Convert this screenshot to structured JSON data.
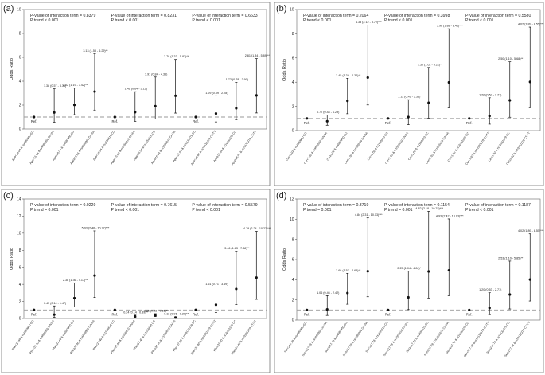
{
  "chart_data": [
    {
      "type": "forest",
      "panel": "(a)",
      "ylabel": "Odds Ratio",
      "ylim": [
        0,
        10
      ],
      "yticks": [
        0,
        2,
        4,
        6,
        8,
        10
      ],
      "reference_line": 1,
      "groups": [
        {
          "interaction": "P-value of interaction term = 0.8379",
          "trend": "P trend < 0.001",
          "points": [
            {
              "category": "Apo<16.04 & rs4680960 GG",
              "or": 1.0,
              "lo": null,
              "hi": null,
              "label": "Ref."
            },
            {
              "category": "Apo<16.04 & rs4680960 GA/AA",
              "or": 1.38,
              "lo": 0.57,
              "hi": 3.36,
              "label": "1.38 (0.57 - 3.36)"
            },
            {
              "category": "Apo≥16.04 & rs4680960 GG",
              "or": 2.02,
              "lo": 1.19,
              "hi": 3.42,
              "label": "2.02 (1.19 - 3.42)**"
            },
            {
              "category": "Apo≥16.04 & rs4680960 GA/AA",
              "or": 3.13,
              "lo": 1.58,
              "hi": 6.29,
              "label": "3.13 (1.58 - 6.29)**"
            }
          ]
        },
        {
          "interaction": "P-value of interaction term = 0.8231",
          "trend": "P trend < 0.001",
          "points": [
            {
              "category": "Apo<16.04 & rs1556610 CC",
              "or": 1.0,
              "lo": null,
              "hi": null,
              "label": "Ref."
            },
            {
              "category": "Apo<16.04 & rs1556610 CA/AA",
              "or": 1.41,
              "lo": 0.64,
              "hi": 3.12,
              "label": "1.41 (0.64 - 3.12)"
            },
            {
              "category": "Apo≥16.04 & rs1556610 CC",
              "or": 1.91,
              "lo": 0.84,
              "hi": 4.35,
              "label": "1.91 (0.84 - 4.35)"
            },
            {
              "category": "Apo≥16.04 & rs1556610 CA/AA",
              "or": 2.78,
              "lo": 1.33,
              "hi": 5.82,
              "label": "2.78 (1.33 - 5.82)**"
            }
          ]
        },
        {
          "interaction": "P-value of interaction term = 0.6633",
          "trend": "P trend < 0.001",
          "points": [
            {
              "category": "Apo<16.04 & rs10132379 CC",
              "or": 1.0,
              "lo": null,
              "hi": null,
              "label": "Ref."
            },
            {
              "category": "Apo<16.04 & rs10132379 CT/TT",
              "or": 1.29,
              "lo": 0.59,
              "hi": 2.78,
              "label": "1.29 (0.59 - 2.78)"
            },
            {
              "category": "Apo≥16.04 & rs10132379 CC",
              "or": 1.73,
              "lo": 0.78,
              "hi": 3.9,
              "label": "1.73 (0.78 - 3.90)"
            },
            {
              "category": "Apo≥16.04 & rs10132379 CT/TT",
              "or": 2.81,
              "lo": 1.34,
              "hi": 5.89,
              "label": "2.81 (1.34 - 5.89)**"
            }
          ]
        }
      ]
    },
    {
      "type": "forest",
      "panel": "(b)",
      "ylabel": "Odds Ratio",
      "ylim": [
        0,
        10
      ],
      "yticks": [
        0,
        2,
        4,
        6,
        8,
        10
      ],
      "reference_line": 1,
      "groups": [
        {
          "interaction": "P-value of interaction term = 0.2064",
          "trend": "P trend < 0.001",
          "points": [
            {
              "category": "Cer<1.02 & rs4680960 GG",
              "or": 1.0,
              "lo": null,
              "hi": null,
              "label": "Ref."
            },
            {
              "category": "Cer<1.02 & rs4680960 GA/AA",
              "or": 0.77,
              "lo": 0.44,
              "hi": 1.29,
              "label": "0.77 (0.44 - 1.29)"
            },
            {
              "category": "Cer≥1.02 & rs4680960 GG",
              "or": 2.45,
              "lo": 1.39,
              "hi": 4.32,
              "label": "2.45 (1.39 - 4.32)**"
            },
            {
              "category": "Cer≥1.02 & rs4680960 GA/AA",
              "or": 4.38,
              "lo": 2.12,
              "hi": 8.72,
              "label": "4.38 (2.12 - 8.72)***"
            }
          ]
        },
        {
          "interaction": "P-value of interaction term = 0.3998",
          "trend": "P trend < 0.001",
          "points": [
            {
              "category": "Cer<1.02 & rs1556610 CC",
              "or": 1.0,
              "lo": null,
              "hi": null,
              "label": "Ref."
            },
            {
              "category": "Cer<1.02 & rs1556610 CA/AA",
              "or": 1.12,
              "lo": 0.49,
              "hi": 2.55,
              "label": "1.12 (0.49 - 2.55)"
            },
            {
              "category": "Cer≥1.02 & rs1556610 CC",
              "or": 2.3,
              "lo": 1.02,
              "hi": 5.21,
              "label": "2.30 (1.02 - 5.21)*"
            },
            {
              "category": "Cer≥1.02 & rs1556610 CA/AA",
              "or": 3.98,
              "lo": 1.88,
              "hi": 8.41,
              "label": "3.98 (1.88 - 8.41)***"
            }
          ]
        },
        {
          "interaction": "P-value of interaction term = 0.5580",
          "trend": "P trend < 0.001",
          "points": [
            {
              "category": "Cer<1.02 & rs10132379 CC",
              "or": 1.0,
              "lo": null,
              "hi": null,
              "label": "Ref."
            },
            {
              "category": "Cer<1.02 & rs10132379 CT/TT",
              "or": 1.2,
              "lo": 0.53,
              "hi": 2.71,
              "label": "1.20 (0.53 - 2.71)"
            },
            {
              "category": "Cer≥1.02 & rs10132379 CC",
              "or": 2.5,
              "lo": 1.1,
              "hi": 5.68,
              "label": "2.50 (1.10 - 5.68)**"
            },
            {
              "category": "Cer≥1.02 & rs10132379 CT/TT",
              "or": 4.02,
              "lo": 1.89,
              "hi": 8.55,
              "label": "4.02 (1.89 - 8.55)***"
            }
          ]
        }
      ]
    },
    {
      "type": "forest",
      "panel": "(c)",
      "ylabel": "Odds Ratio",
      "ylim": [
        0,
        14
      ],
      "yticks": [
        0,
        2,
        4,
        6,
        8,
        10,
        12,
        14
      ],
      "reference_line": 1,
      "groups": [
        {
          "interaction": "P-value of interaction term = 0.0229",
          "trend": "P trend = 0.001",
          "points": [
            {
              "category": "Phe<37.40 & rs4680960 GG",
              "or": 1.0,
              "lo": null,
              "hi": null,
              "label": "Ref."
            },
            {
              "category": "Phe<37.40 & rs4680960 GA/AA",
              "or": 0.45,
              "lo": 0.14,
              "hi": 1.47,
              "label": "0.45 (0.14 - 1.47)"
            },
            {
              "category": "Phe≥37.40 & rs4680960 GG",
              "or": 2.38,
              "lo": 1.36,
              "hi": 4.17,
              "label": "2.38 (1.36 - 4.17)**"
            },
            {
              "category": "Phe≥37.40 & rs4680960 GA/AA",
              "or": 5.03,
              "lo": 2.46,
              "hi": 10.27,
              "label": "5.03 (2.46 - 10.27)***"
            }
          ]
        },
        {
          "interaction": "P-value of interaction term = 0.7615",
          "trend": "P trend < 0.001",
          "points": [
            {
              "category": "Phe<37.40 & rs1556610 CC",
              "or": 1.0,
              "lo": null,
              "hi": null,
              "label": "Ref."
            },
            {
              "category": "Phe<37.40 & rs1556610 CA/AA",
              "or": 0.24,
              "lo": 0.14,
              "hi": 0.39,
              "label": "0.24 (0.14 - 0.39)**"
            },
            {
              "category": "Phe≥37.40 & rs1556610 CC",
              "or": 0.36,
              "lo": 0.23,
              "hi": 0.56,
              "label": "0.36 (0.23 - 0.56)**"
            },
            {
              "category": "Phe≥37.40 & rs1556610 CA/AA",
              "or": 0.11,
              "lo": 0.06,
              "hi": 0.2,
              "label": "0.11 (0.06 - 0.20)**"
            }
          ]
        },
        {
          "interaction": "P-value of interaction term = 0.5579",
          "trend": "P trend < 0.001",
          "points": [
            {
              "category": "Phe<37.40 & rs10132379 CC",
              "or": 1.0,
              "lo": null,
              "hi": null,
              "label": "Ref."
            },
            {
              "category": "Phe<37.40 & rs10132379 CT/TT",
              "or": 1.61,
              "lo": 0.71,
              "hi": 3.69,
              "label": "1.61 (0.71 - 3.69)"
            },
            {
              "category": "Phe≥37.40 & rs10132379 CC",
              "or": 3.46,
              "lo": 1.63,
              "hi": 7.88,
              "label": "3.46 (1.63 - 7.88)**"
            },
            {
              "category": "Phe≥37.40 & rs10132379 CT/TT",
              "or": 4.79,
              "lo": 2.24,
              "hi": 10.22,
              "label": "4.79 (2.24 - 10.22)***"
            }
          ]
        }
      ]
    },
    {
      "type": "forest",
      "panel": "(d)",
      "ylabel": "Odds Ratio",
      "ylim": [
        0,
        12
      ],
      "yticks": [
        0,
        2,
        4,
        6,
        8,
        10,
        12
      ],
      "reference_line": 1,
      "groups": [
        {
          "interaction": "P-value of interaction term = 0.3719",
          "trend": "P trend = 0.001",
          "points": [
            {
              "category": "Ser<217.78 & rs4680960 GG",
              "or": 1.0,
              "lo": null,
              "hi": null,
              "label": "Ref."
            },
            {
              "category": "Ser<217.78 & rs4680960 GA/AA",
              "or": 1.06,
              "lo": 0.46,
              "hi": 2.42,
              "label": "1.06 (0.46 - 2.42)"
            },
            {
              "category": "Ser≥217.78 & rs4680960 GG",
              "or": 2.68,
              "lo": 1.57,
              "hi": 4.63,
              "label": "2.68 (1.57 - 4.63)**"
            },
            {
              "category": "Ser≥217.78 & rs4680960 GA/AA",
              "or": 4.84,
              "lo": 2.31,
              "hi": 10.13,
              "label": "4.84 (2.31 - 10.13)***"
            }
          ]
        },
        {
          "interaction": "P-value of interaction term = 0.1154",
          "trend": "P trend = 0.001",
          "points": [
            {
              "category": "Ser<217.78 & rs1556610 CC",
              "or": 1.0,
              "lo": null,
              "hi": null,
              "label": "Ref."
            },
            {
              "category": "Ser<217.78 & rs1556610 CA/AA",
              "or": 2.25,
              "lo": 1.04,
              "hi": 4.84,
              "label": "2.25 (1.04 - 4.84)*"
            },
            {
              "category": "Ser≥217.78 & rs1556610 CC",
              "or": 4.82,
              "lo": 2.18,
              "hi": 10.78,
              "label": "4.82 (2.18 - 10.78)***"
            },
            {
              "category": "Ser≥217.78 & rs1556610 CA/AA",
              "or": 4.93,
              "lo": 2.42,
              "hi": 10.03,
              "label": "4.93 (2.42 - 10.03)***"
            }
          ]
        },
        {
          "interaction": "P-value of interaction term = 0.1187",
          "trend": "P trend < 0.001",
          "points": [
            {
              "category": "Ser<217.78 & rs10132379 CC",
              "or": 1.0,
              "lo": null,
              "hi": null,
              "label": "Ref."
            },
            {
              "category": "Ser<217.78 & rs10132379 CT/TT",
              "or": 1.2,
              "lo": 0.53,
              "hi": 2.71,
              "label": "1.20 (0.53 - 2.71)"
            },
            {
              "category": "Ser≥217.78 & rs10132379 CC",
              "or": 2.53,
              "lo": 1.1,
              "hi": 5.85,
              "label": "2.53 (1.10 - 5.85)**"
            },
            {
              "category": "Ser≥217.78 & rs10132379 CT/TT",
              "or": 4.02,
              "lo": 1.89,
              "hi": 8.55,
              "label": "4.02 (1.89 - 8.55)***"
            }
          ]
        }
      ]
    }
  ]
}
